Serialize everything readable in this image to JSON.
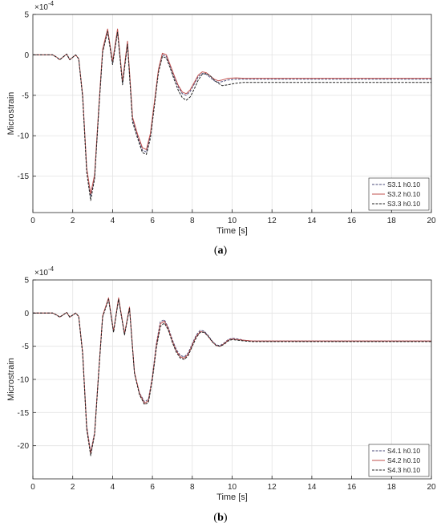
{
  "chart_data": [
    {
      "type": "line",
      "panel_label": "a",
      "xlabel": "Time [s]",
      "ylabel": "Microstrain",
      "exponent_label": "×10",
      "exponent_power": "-4",
      "xlim": [
        0,
        20
      ],
      "ylim": [
        -19.5,
        5
      ],
      "xticks": [
        0,
        2,
        4,
        6,
        8,
        10,
        12,
        14,
        16,
        18,
        20
      ],
      "yticks": [
        5,
        0,
        -5,
        -10,
        -15
      ],
      "grid": true,
      "legend_position": "bottom-right",
      "series": [
        {
          "name": "S3.1 h0.10",
          "color": "#4a4a7a",
          "dash": "dashed",
          "x": [
            0,
            1,
            1.2,
            1.35,
            1.5,
            1.7,
            1.85,
            2.0,
            2.15,
            2.3,
            2.5,
            2.7,
            2.9,
            3.1,
            3.3,
            3.5,
            3.75,
            4.0,
            4.25,
            4.5,
            4.75,
            5.0,
            5.25,
            5.5,
            5.7,
            5.9,
            6.1,
            6.3,
            6.5,
            6.7,
            6.9,
            7.1,
            7.3,
            7.5,
            7.7,
            7.9,
            8.1,
            8.3,
            8.5,
            8.7,
            8.9,
            9.1,
            9.3,
            9.5,
            9.8,
            10.2,
            10.6,
            11,
            12,
            14,
            16,
            18,
            20
          ],
          "y": [
            0,
            0,
            -0.3,
            -0.6,
            -0.3,
            0.1,
            -0.6,
            -0.3,
            0,
            -0.5,
            -5,
            -14,
            -17.5,
            -15,
            -7,
            0.5,
            3,
            -1,
            3,
            -3.5,
            1.5,
            -8,
            -10,
            -11.8,
            -12,
            -10,
            -6,
            -2,
            0,
            -0.2,
            -1.5,
            -2.8,
            -4,
            -4.8,
            -5,
            -4.5,
            -3.6,
            -2.7,
            -2.3,
            -2.4,
            -2.8,
            -3.2,
            -3.4,
            -3.3,
            -3.1,
            -3.0,
            -3.0,
            -3.0,
            -3.0,
            -3.0,
            -3.0,
            -3.0,
            -3.0
          ]
        },
        {
          "name": "S3.2 h0.10",
          "color": "#c0504d",
          "dash": "solid",
          "x": [
            0,
            1,
            1.2,
            1.35,
            1.5,
            1.7,
            1.85,
            2.0,
            2.15,
            2.3,
            2.5,
            2.7,
            2.9,
            3.1,
            3.3,
            3.5,
            3.75,
            4.0,
            4.25,
            4.5,
            4.75,
            5.0,
            5.25,
            5.5,
            5.7,
            5.9,
            6.1,
            6.3,
            6.5,
            6.7,
            6.9,
            7.1,
            7.3,
            7.5,
            7.7,
            7.9,
            8.1,
            8.3,
            8.5,
            8.7,
            8.9,
            9.1,
            9.3,
            9.5,
            9.8,
            10.2,
            10.6,
            11,
            12,
            14,
            16,
            18,
            20
          ],
          "y": [
            0,
            0,
            -0.3,
            -0.6,
            -0.3,
            0.1,
            -0.6,
            -0.3,
            0,
            -0.5,
            -5,
            -14,
            -17.2,
            -14.8,
            -6.8,
            0.7,
            3.2,
            -0.8,
            3.2,
            -3.3,
            1.7,
            -7.7,
            -9.8,
            -11.5,
            -11.7,
            -9.7,
            -5.8,
            -1.8,
            0.2,
            0,
            -1.3,
            -2.6,
            -3.8,
            -4.6,
            -4.8,
            -4.3,
            -3.4,
            -2.5,
            -2.1,
            -2.2,
            -2.6,
            -3.0,
            -3.2,
            -3.1,
            -2.9,
            -2.85,
            -2.9,
            -2.9,
            -2.9,
            -2.9,
            -2.9,
            -2.9,
            -2.9
          ]
        },
        {
          "name": "S3.3 h0.10",
          "color": "#222222",
          "dash": "dashed",
          "x": [
            0,
            1,
            1.2,
            1.35,
            1.5,
            1.7,
            1.85,
            2.0,
            2.15,
            2.3,
            2.5,
            2.7,
            2.9,
            3.1,
            3.3,
            3.5,
            3.75,
            4.0,
            4.25,
            4.5,
            4.75,
            5.0,
            5.25,
            5.5,
            5.7,
            5.9,
            6.1,
            6.3,
            6.5,
            6.7,
            6.9,
            7.1,
            7.3,
            7.5,
            7.7,
            7.9,
            8.1,
            8.3,
            8.5,
            8.7,
            8.9,
            9.1,
            9.3,
            9.5,
            9.8,
            10.2,
            10.6,
            11,
            12,
            14,
            16,
            18,
            20
          ],
          "y": [
            0,
            0,
            -0.3,
            -0.6,
            -0.3,
            0.1,
            -0.6,
            -0.3,
            0,
            -0.5,
            -5.3,
            -14.5,
            -18,
            -15.3,
            -7.2,
            0.3,
            2.9,
            -1.2,
            2.8,
            -3.7,
            1.3,
            -8.3,
            -10.3,
            -12.1,
            -12.3,
            -10.3,
            -6.3,
            -2.2,
            -0.2,
            -0.4,
            -1.7,
            -3.1,
            -4.4,
            -5.3,
            -5.6,
            -5.2,
            -4.2,
            -3.1,
            -2.4,
            -2.3,
            -2.6,
            -3.1,
            -3.5,
            -3.8,
            -3.7,
            -3.5,
            -3.4,
            -3.4,
            -3.4,
            -3.4,
            -3.4,
            -3.4,
            -3.4
          ]
        }
      ]
    },
    {
      "type": "line",
      "panel_label": "b",
      "xlabel": "Time [s]",
      "ylabel": "Microstrain",
      "exponent_label": "×10",
      "exponent_power": "-4",
      "xlim": [
        0,
        20
      ],
      "ylim": [
        -25,
        5
      ],
      "xticks": [
        0,
        2,
        4,
        6,
        8,
        10,
        12,
        14,
        16,
        18,
        20
      ],
      "yticks": [
        5,
        0,
        -5,
        -10,
        -15,
        -20
      ],
      "grid": true,
      "legend_position": "bottom-right",
      "series": [
        {
          "name": "S4.1 h0.10",
          "color": "#4a4a7a",
          "dash": "dashed",
          "x": [
            0,
            1,
            1.2,
            1.35,
            1.5,
            1.7,
            1.85,
            2.0,
            2.15,
            2.3,
            2.5,
            2.7,
            2.9,
            3.1,
            3.3,
            3.5,
            3.8,
            4.05,
            4.3,
            4.6,
            4.85,
            5.1,
            5.35,
            5.6,
            5.8,
            6.0,
            6.2,
            6.4,
            6.6,
            6.8,
            7.0,
            7.2,
            7.4,
            7.6,
            7.8,
            8.0,
            8.2,
            8.4,
            8.6,
            8.8,
            9.0,
            9.2,
            9.4,
            9.6,
            9.8,
            10.0,
            10.3,
            10.6,
            11,
            12,
            14,
            16,
            18,
            20
          ],
          "y": [
            0,
            0,
            -0.3,
            -0.6,
            -0.3,
            0.1,
            -0.6,
            -0.3,
            0,
            -0.5,
            -6,
            -17,
            -21,
            -18,
            -9,
            -0.5,
            2.2,
            -2.8,
            2.2,
            -3.2,
            0.8,
            -9,
            -12,
            -13.4,
            -13,
            -9.5,
            -4.5,
            -1.3,
            -1,
            -2.2,
            -4,
            -5.5,
            -6.4,
            -6.6,
            -6,
            -4.6,
            -3.3,
            -2.6,
            -2.7,
            -3.4,
            -4.2,
            -4.8,
            -4.9,
            -4.5,
            -4.0,
            -3.8,
            -3.9,
            -4.1,
            -4.2,
            -4.2,
            -4.2,
            -4.2,
            -4.2,
            -4.2
          ]
        },
        {
          "name": "S4.2 h0.10",
          "color": "#c0504d",
          "dash": "solid",
          "x": [
            0,
            1,
            1.2,
            1.35,
            1.5,
            1.7,
            1.85,
            2.0,
            2.15,
            2.3,
            2.5,
            2.7,
            2.9,
            3.1,
            3.3,
            3.5,
            3.8,
            4.05,
            4.3,
            4.6,
            4.85,
            5.1,
            5.35,
            5.6,
            5.8,
            6.0,
            6.2,
            6.4,
            6.6,
            6.8,
            7.0,
            7.2,
            7.4,
            7.6,
            7.8,
            8.0,
            8.2,
            8.4,
            8.6,
            8.8,
            9.0,
            9.2,
            9.4,
            9.6,
            9.8,
            10.0,
            10.3,
            10.6,
            11,
            12,
            14,
            16,
            18,
            20
          ],
          "y": [
            0,
            0,
            -0.3,
            -0.6,
            -0.3,
            0.1,
            -0.6,
            -0.3,
            0,
            -0.5,
            -6,
            -17.2,
            -21.2,
            -18.1,
            -9,
            -0.4,
            2.3,
            -2.7,
            2.3,
            -3.1,
            0.9,
            -8.9,
            -12.1,
            -13.6,
            -13.2,
            -9.7,
            -4.8,
            -1.6,
            -1.2,
            -2.4,
            -4.2,
            -5.7,
            -6.6,
            -6.8,
            -6.2,
            -4.8,
            -3.5,
            -2.8,
            -2.9,
            -3.5,
            -4.3,
            -4.9,
            -5.0,
            -4.6,
            -4.1,
            -3.9,
            -4.0,
            -4.1,
            -4.2,
            -4.2,
            -4.2,
            -4.2,
            -4.2,
            -4.2
          ]
        },
        {
          "name": "S4.3 h0.10",
          "color": "#222222",
          "dash": "dashed",
          "x": [
            0,
            1,
            1.2,
            1.35,
            1.5,
            1.7,
            1.85,
            2.0,
            2.15,
            2.3,
            2.5,
            2.7,
            2.9,
            3.1,
            3.3,
            3.5,
            3.8,
            4.05,
            4.3,
            4.6,
            4.85,
            5.1,
            5.35,
            5.6,
            5.8,
            6.0,
            6.2,
            6.4,
            6.6,
            6.8,
            7.0,
            7.2,
            7.4,
            7.6,
            7.8,
            8.0,
            8.2,
            8.4,
            8.6,
            8.8,
            9.0,
            9.2,
            9.4,
            9.6,
            9.8,
            10.0,
            10.3,
            10.6,
            11,
            12,
            14,
            16,
            18,
            20
          ],
          "y": [
            0,
            0,
            -0.3,
            -0.6,
            -0.3,
            0.1,
            -0.6,
            -0.3,
            0,
            -0.5,
            -6.2,
            -17.5,
            -21.5,
            -18.3,
            -9.2,
            -0.6,
            2.1,
            -2.9,
            2.1,
            -3.3,
            0.7,
            -9.1,
            -12.3,
            -13.8,
            -13.5,
            -10,
            -5.2,
            -2,
            -1.5,
            -2.6,
            -4.4,
            -5.9,
            -6.8,
            -7.0,
            -6.4,
            -5.0,
            -3.7,
            -2.9,
            -2.9,
            -3.5,
            -4.3,
            -4.9,
            -5.0,
            -4.7,
            -4.2,
            -4.0,
            -4.1,
            -4.2,
            -4.3,
            -4.3,
            -4.3,
            -4.3,
            -4.3,
            -4.3
          ]
        }
      ]
    }
  ]
}
